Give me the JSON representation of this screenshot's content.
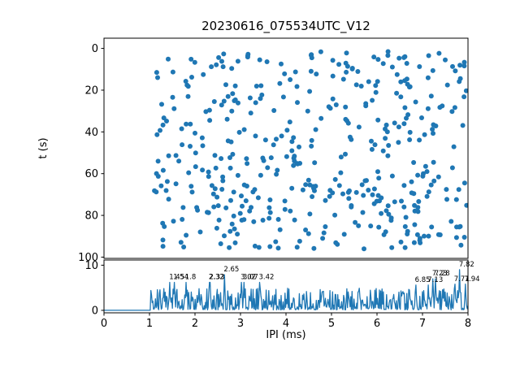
{
  "figure": {
    "title": "20230616_075534UTC_V12",
    "background": "#ffffff",
    "accent_color": "#1f77b4"
  },
  "chart_data": [
    {
      "id": "raster",
      "type": "scatter",
      "title": "20230616_075534UTC_V12",
      "xlabel": "",
      "ylabel": "t (s)",
      "xlim": [
        0,
        8
      ],
      "ylim": [
        100.6,
        -4.9
      ],
      "y_inverted": true,
      "yticks": [
        0,
        20,
        40,
        60,
        80,
        100
      ],
      "xticks_visible": false,
      "grid": false,
      "marker_color": "#1f77b4",
      "marker_radius_px": 3,
      "points_spec": {
        "note": "dense unlabeled raster of pulse times; points only occur for IPI > ~1.05 ms, t spans ~1.5-96 s, approximated as uniform random",
        "n": 440,
        "x_min": 1.08,
        "x_max": 7.98,
        "t_min": 1.5,
        "t_max": 96,
        "seed": 20230616
      }
    },
    {
      "id": "ipi_trace",
      "type": "line",
      "xlabel": "IPI (ms)",
      "ylabel": "",
      "xlim": [
        0,
        8
      ],
      "ylim": [
        -0.55,
        11.15
      ],
      "xticks": [
        0,
        1,
        2,
        3,
        4,
        5,
        6,
        7,
        8
      ],
      "yticks": [
        0,
        10
      ],
      "grid": false,
      "line_color": "#1f77b4",
      "flat_zero_until_x": 1.02,
      "noise_spec": {
        "note": "rapidly oscillating count/rate trace, mostly 0-5, zero below 1.02 ms",
        "n": 560,
        "base": 0.12,
        "max": 4.8,
        "seed": 75534
      },
      "annotations": [
        {
          "x": 1.45,
          "label": "1.45",
          "label_y": 6.9
        },
        {
          "x": 1.54,
          "label": "1.54",
          "label_y": 6.9
        },
        {
          "x": 1.8,
          "label": "1.8",
          "label_y": 6.9
        },
        {
          "x": 2.32,
          "label": "2.32",
          "label_y": 6.9
        },
        {
          "x": 2.33,
          "label": "2.33",
          "label_y": 6.9
        },
        {
          "x": 2.65,
          "label": "2.65",
          "label_y": 8.6
        },
        {
          "x": 3.02,
          "label": "3.02",
          "label_y": 6.9
        },
        {
          "x": 3.07,
          "label": "3.07",
          "label_y": 6.9
        },
        {
          "x": 3.42,
          "label": "3.42",
          "label_y": 6.9
        },
        {
          "x": 6.85,
          "label": "6.85",
          "label_y": 6.3
        },
        {
          "x": 7.13,
          "label": "7.13",
          "label_y": 6.3
        },
        {
          "x": 7.23,
          "label": "7.23",
          "label_y": 7.7
        },
        {
          "x": 7.28,
          "label": "7.28",
          "label_y": 7.7
        },
        {
          "x": 7.71,
          "label": "7.71",
          "label_y": 6.5
        },
        {
          "x": 7.82,
          "label": "7.82",
          "label_y": 9.7
        },
        {
          "x": 7.94,
          "label": "7.94",
          "label_y": 6.5
        }
      ]
    }
  ]
}
